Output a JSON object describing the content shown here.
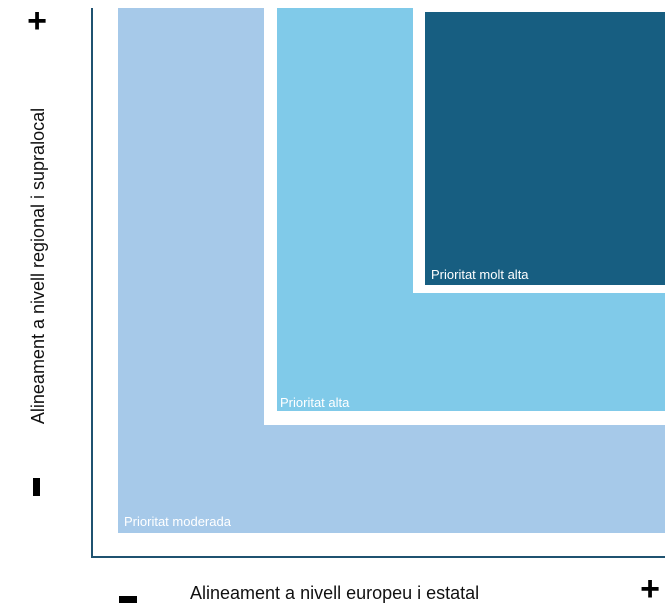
{
  "zones": {
    "very_high": {
      "label": "Prioritat molt alta",
      "color": "#175e81"
    },
    "high": {
      "label": "Prioritat alta",
      "color": "#80cae9"
    },
    "moderate": {
      "label": "Prioritat moderada",
      "color": "#a6c9e9"
    }
  },
  "axes": {
    "x_label": "Alineament a nivell europeu i estatal",
    "y_label": "Alineament a nivell regional i supralocal",
    "plus_sign": "+",
    "minus_sign": "-"
  }
}
